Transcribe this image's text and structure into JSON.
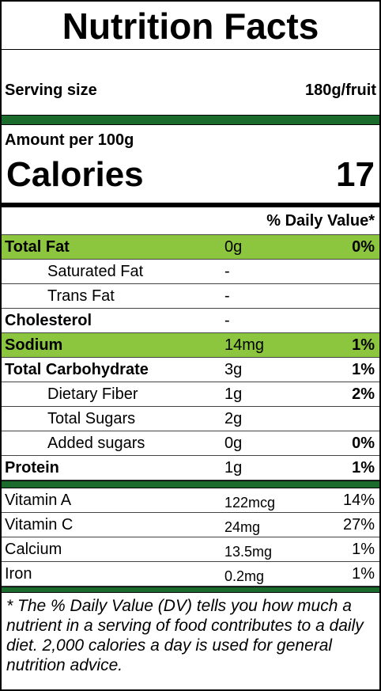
{
  "header": {
    "title": "Nutrition Facts",
    "serving_label": "Serving size",
    "serving_value": "180g/fruit"
  },
  "calories": {
    "amount_label": "Amount per 100g",
    "label": "Calories",
    "value": "17"
  },
  "daily_value_header": "% Daily Value*",
  "nutrients": [
    {
      "name": "Total Fat",
      "amount": "0g",
      "dv": "0%",
      "bold": true,
      "highlight": true,
      "indent": false
    },
    {
      "name": "Saturated Fat",
      "amount": "-",
      "bold": false,
      "highlight": false,
      "indent": true
    },
    {
      "name": "Trans Fat",
      "amount": "-",
      "bold": false,
      "highlight": false,
      "indent": true
    },
    {
      "name": "Cholesterol",
      "amount": "-",
      "bold": true,
      "highlight": false,
      "indent": false
    },
    {
      "name": "Sodium",
      "amount": "14mg",
      "dv": "1%",
      "bold": true,
      "highlight": true,
      "indent": false
    },
    {
      "name": "Total Carbohydrate",
      "amount": "3g",
      "dv": "1%",
      "bold": true,
      "highlight": false,
      "indent": false
    },
    {
      "name": "Dietary Fiber",
      "amount": "1g",
      "dv": "2%",
      "bold": false,
      "highlight": false,
      "indent": true
    },
    {
      "name": "Total Sugars",
      "amount": "2g",
      "bold": false,
      "highlight": false,
      "indent": true
    },
    {
      "name": "Added sugars",
      "amount": "0g",
      "dv": "0%",
      "bold": false,
      "highlight": false,
      "indent": true
    },
    {
      "name": "Protein",
      "amount": "1g",
      "dv": "1%",
      "bold": true,
      "highlight": false,
      "indent": false
    }
  ],
  "vitamins": [
    {
      "name": "Vitamin A",
      "amount": "122mcg",
      "dv": "14%"
    },
    {
      "name": "Vitamin C",
      "amount": "24mg",
      "dv": "27%"
    },
    {
      "name": "Calcium",
      "amount": "13.5mg",
      "dv": "1%"
    },
    {
      "name": "Iron",
      "amount": "0.2mg",
      "dv": "1%"
    }
  ],
  "footnote": "* The % Daily Value (DV) tells you how much a nutrient in a serving of food contributes to a daily diet. 2,000 calories a day is used for general nutrition advice."
}
